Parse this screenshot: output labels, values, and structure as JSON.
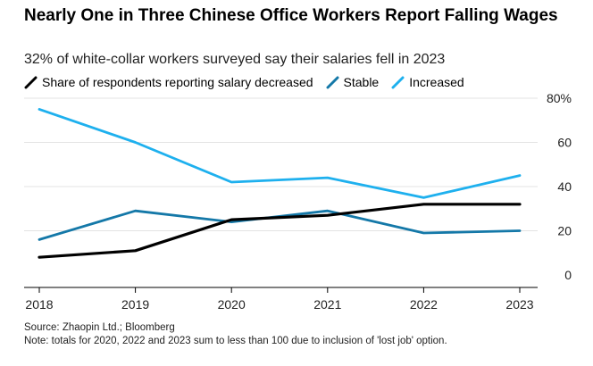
{
  "title": "Nearly One in Three Chinese Office Workers Report Falling Wages",
  "subtitle": "32% of white-collar workers surveyed say their salaries fell in 2023",
  "source": "Source: Zhaopin Ltd.; Bloomberg",
  "note": "Note: totals for 2020, 2022 and 2023 sum to less than 100 due to inclusion of 'lost job' option.",
  "chart_data": {
    "type": "line",
    "x": [
      "2018",
      "2019",
      "2020",
      "2021",
      "2022",
      "2023"
    ],
    "ylim": [
      0,
      80
    ],
    "y_ticks": [
      "80%",
      "60",
      "40",
      "20",
      "0"
    ],
    "y_tick_values": [
      80,
      60,
      40,
      20,
      0
    ],
    "grid": true,
    "legend_position": "top-left",
    "series": [
      {
        "name": "Share of respondents reporting salary decreased",
        "color": "#000000",
        "values": [
          8,
          11,
          25,
          27,
          32,
          32
        ]
      },
      {
        "name": "Stable",
        "color": "#1478a8",
        "values": [
          16,
          29,
          24,
          29,
          19,
          20
        ]
      },
      {
        "name": "Increased",
        "color": "#1eb0ee",
        "values": [
          75,
          60,
          42,
          44,
          35,
          45
        ]
      }
    ]
  }
}
